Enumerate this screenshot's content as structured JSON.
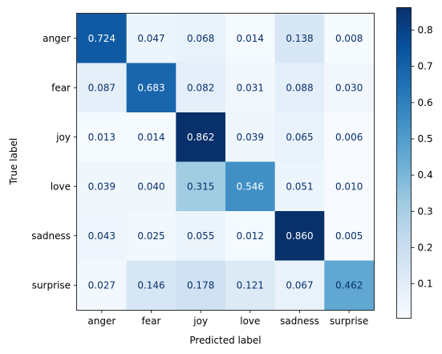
{
  "chart_data": {
    "type": "heatmap",
    "title": "",
    "xlabel": "Predicted label",
    "ylabel": "True label",
    "x_categories": [
      "anger",
      "fear",
      "joy",
      "love",
      "sadness",
      "surprise"
    ],
    "y_categories": [
      "anger",
      "fear",
      "joy",
      "love",
      "sadness",
      "surprise"
    ],
    "values": [
      [
        0.724,
        0.047,
        0.068,
        0.014,
        0.138,
        0.008
      ],
      [
        0.087,
        0.683,
        0.082,
        0.031,
        0.088,
        0.03
      ],
      [
        0.013,
        0.014,
        0.862,
        0.039,
        0.065,
        0.006
      ],
      [
        0.039,
        0.04,
        0.315,
        0.546,
        0.051,
        0.01
      ],
      [
        0.043,
        0.025,
        0.055,
        0.012,
        0.86,
        0.005
      ],
      [
        0.027,
        0.146,
        0.178,
        0.121,
        0.067,
        0.462
      ]
    ],
    "value_labels": [
      [
        "0.724",
        "0.047",
        "0.068",
        "0.014",
        "0.138",
        "0.008"
      ],
      [
        "0.087",
        "0.683",
        "0.082",
        "0.031",
        "0.088",
        "0.030"
      ],
      [
        "0.013",
        "0.014",
        "0.862",
        "0.039",
        "0.065",
        "0.006"
      ],
      [
        "0.039",
        "0.040",
        "0.315",
        "0.546",
        "0.051",
        "0.010"
      ],
      [
        "0.043",
        "0.025",
        "0.055",
        "0.012",
        "0.860",
        "0.005"
      ],
      [
        "0.027",
        "0.146",
        "0.178",
        "0.121",
        "0.067",
        "0.462"
      ]
    ],
    "colormap": "Blues",
    "color_range": [
      0.005,
      0.862
    ],
    "colorbar_ticks": [
      "0.1",
      "0.2",
      "0.3",
      "0.4",
      "0.5",
      "0.6",
      "0.7",
      "0.8"
    ],
    "grid": false
  }
}
